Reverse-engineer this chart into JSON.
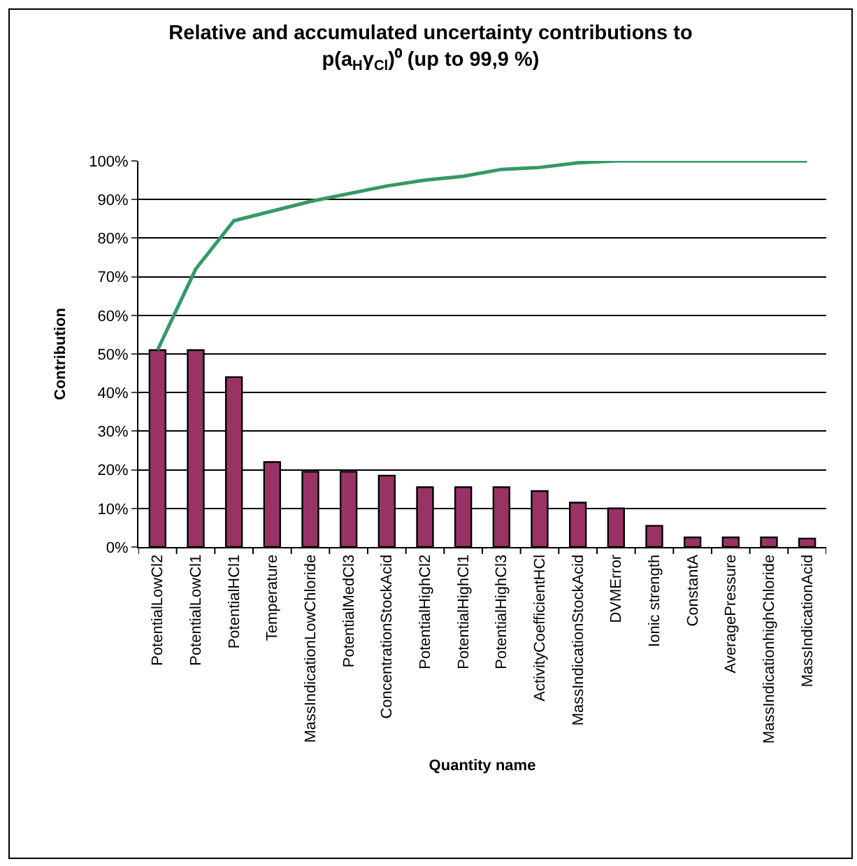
{
  "chart_data": {
    "type": "bar",
    "title": "Relative and accumulated uncertainty contributions to p(a$_{H}$γ$_{Cl}$)⁰ (up to 99,9 %)",
    "xlabel": "Quantity name",
    "ylabel": "Contribution",
    "categories": [
      "PotentialLowCl2",
      "PotentialLowCl1",
      "PotentialHCl1",
      "Temperature",
      "MassIndicationLowChloride",
      "PotentialMedCl3",
      "ConcentrationStockAcid",
      "PotentialHighCl2",
      "PotentialHighCl1",
      "PotentialHighCl3",
      "ActivityCoefficientHCl",
      "MassIndicationStockAcid",
      "DVMError",
      "Ionic strength",
      "ConstantA",
      "AveragePressure",
      "MassIndicationhighChloride",
      "MassIndicationAcid"
    ],
    "series": [
      {
        "color": "#993366",
        "values": [
          51,
          51,
          44,
          22,
          19.5,
          19.5,
          18.5,
          15.5,
          15.5,
          15.5,
          14.5,
          11.5,
          10,
          5.5,
          2.5,
          2.5,
          2.5,
          2.2
        ]
      },
      {
        "type": "line",
        "color": "#339966",
        "values": [
          51,
          72,
          84.5,
          87,
          89.5,
          91.5,
          93.5,
          95,
          96,
          97.8,
          98.3,
          99.5,
          100,
          100,
          100,
          100,
          100,
          100
        ]
      }
    ],
    "ylim": [
      0,
      100
    ],
    "yticks": [
      {
        "value": 0,
        "label": "0%"
      },
      {
        "value": 10,
        "label": "10%"
      },
      {
        "value": 20,
        "label": "20%"
      },
      {
        "value": 30,
        "label": "30%"
      },
      {
        "value": 40,
        "label": "40%"
      },
      {
        "value": 50,
        "label": "50%"
      },
      {
        "value": 60,
        "label": "60%"
      },
      {
        "value": 70,
        "label": "70%"
      },
      {
        "value": 80,
        "label": "80%"
      },
      {
        "value": 90,
        "label": "90%"
      },
      {
        "value": 100,
        "label": "100%"
      }
    ],
    "grid": "y",
    "legend": false,
    "marker": "none"
  }
}
